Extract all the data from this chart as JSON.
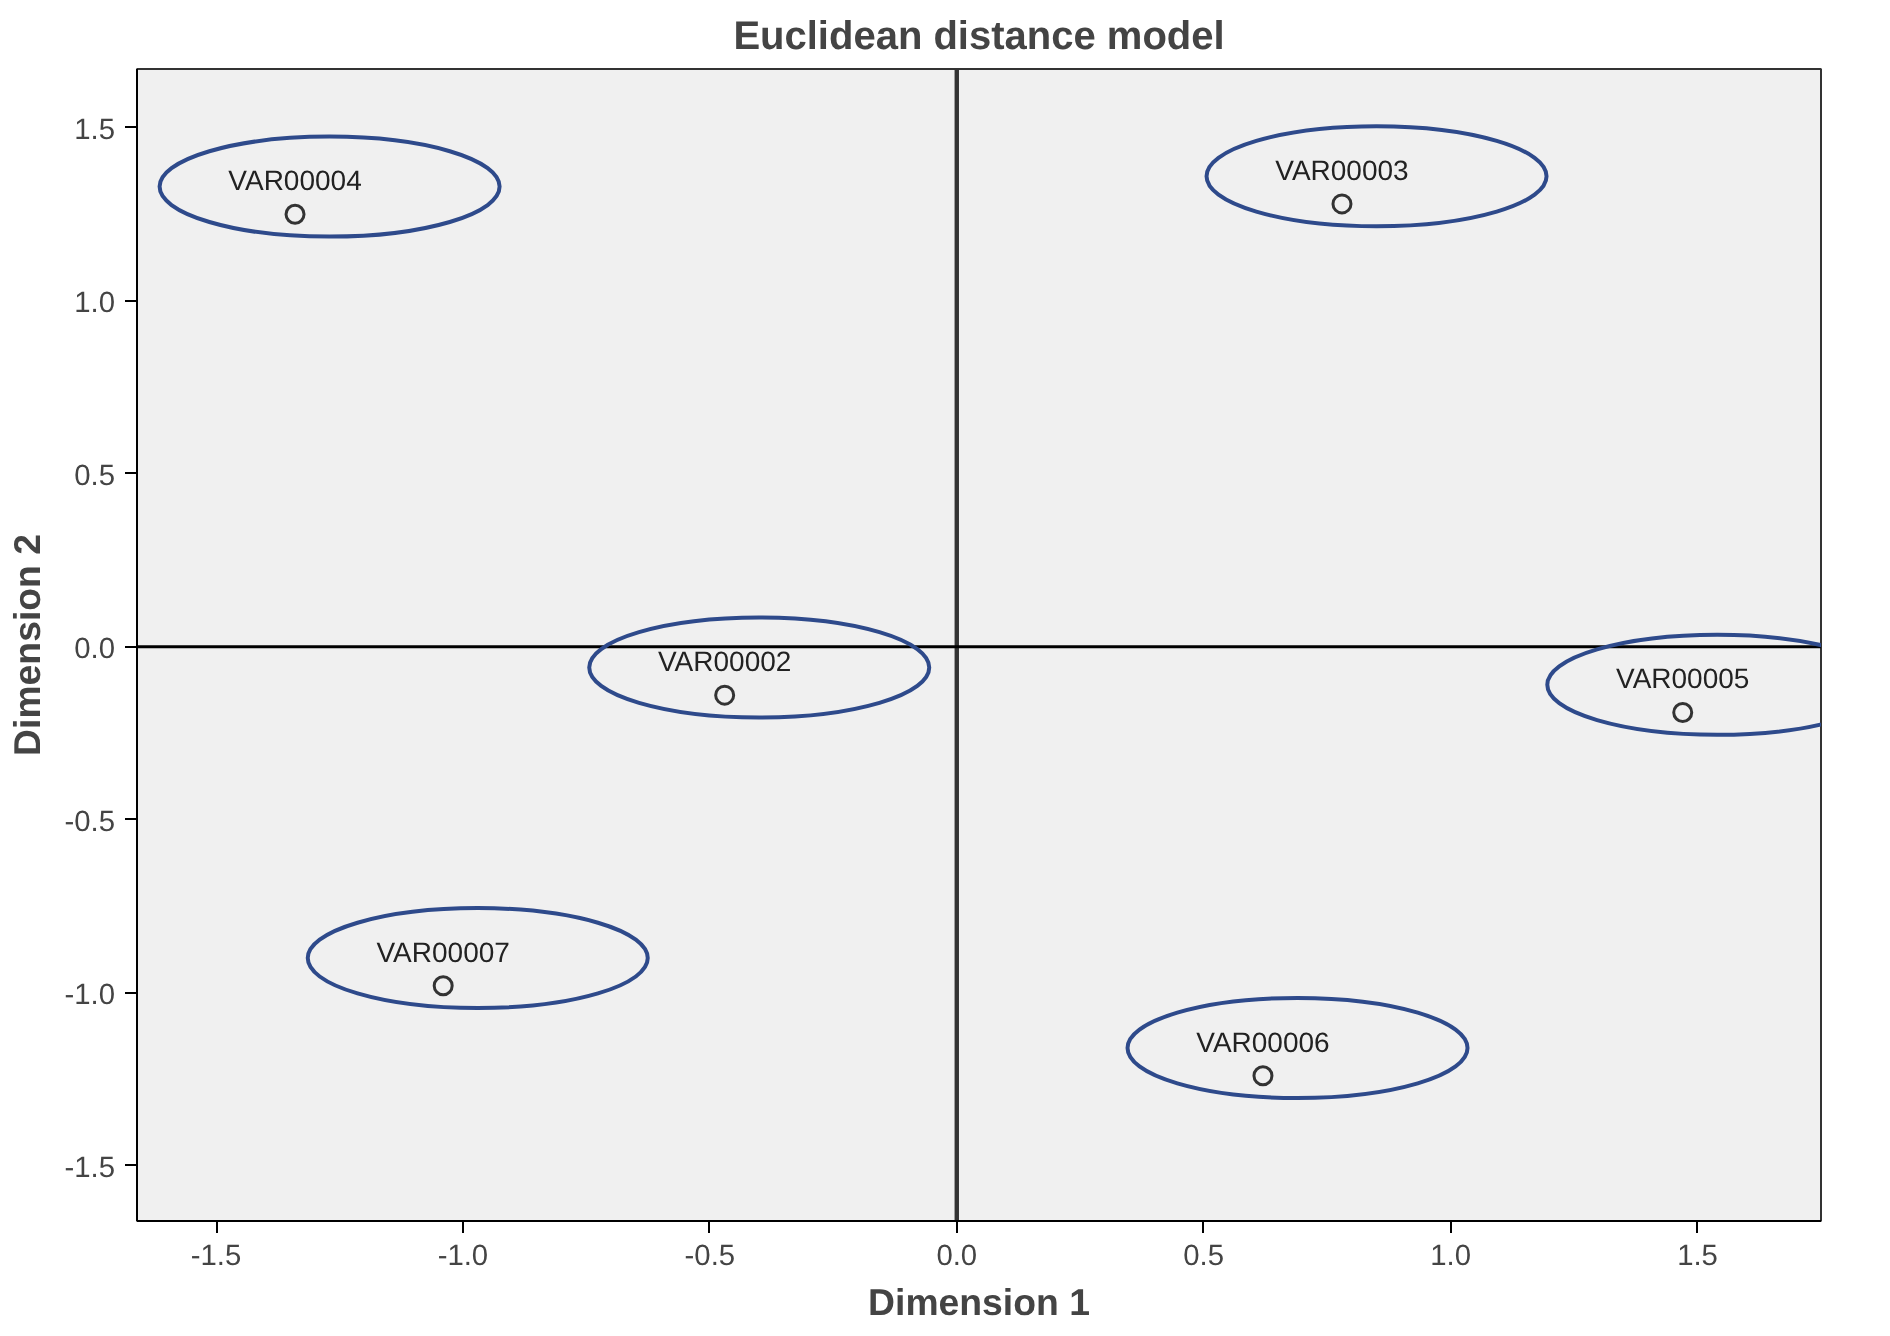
{
  "chart_data": {
    "type": "scatter",
    "title": "Euclidean distance model",
    "xlabel": "Dimension 1",
    "ylabel": "Dimension 2",
    "x": [
      -1.34,
      0.78,
      -0.47,
      1.47,
      -1.04,
      0.62
    ],
    "values": [
      1.25,
      1.28,
      -0.14,
      -0.19,
      -0.98,
      -1.24
    ],
    "color": "#333333",
    "marker": "circle",
    "grid": false,
    "xlim": [
      -1.66,
      1.75
    ],
    "ylim": [
      -1.66,
      1.67
    ],
    "xticks": [
      -1.5,
      {
        "value": -1,
        "label": "-1.0"
      },
      -0.5,
      {
        "value": 0,
        "label": "0.0"
      },
      0.5,
      {
        "value": 1,
        "label": "1.0"
      },
      1.5
    ],
    "yticks": [
      -1.5,
      {
        "value": -1,
        "label": "-1.0"
      },
      -0.5,
      {
        "value": 0,
        "label": "0.0"
      },
      0.5,
      {
        "value": 1,
        "label": "1.0"
      },
      1.5
    ],
    "ref_lines": [
      {
        "axis": "x",
        "value": 0,
        "color": "#333333"
      },
      {
        "axis": "y",
        "value": 0,
        "color": "#000000"
      }
    ],
    "annotations": [
      {
        "text": "VAR00004",
        "x": -1.34,
        "y": 1.25
      },
      {
        "text": "VAR00003",
        "x": 0.78,
        "y": 1.28
      },
      {
        "text": "VAR00002",
        "x": -0.47,
        "y": -0.14
      },
      {
        "text": "VAR00005",
        "x": 1.47,
        "y": -0.19
      },
      {
        "text": "VAR00007",
        "x": -1.04,
        "y": -0.98
      },
      {
        "text": "VAR00006",
        "x": 0.62,
        "y": -1.24
      }
    ]
  }
}
